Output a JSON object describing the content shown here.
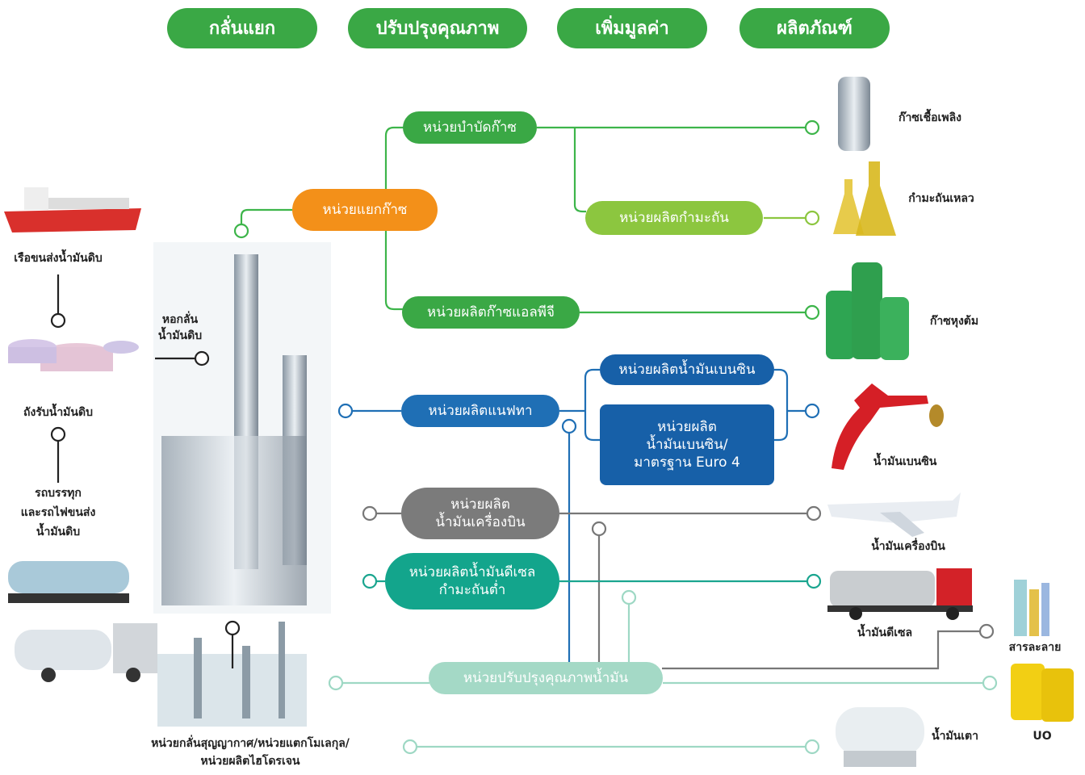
{
  "header": {
    "tabs": [
      "กลั่นแยก",
      "ปรับปรุงคุณภาพ",
      "เพิ่มมูลค่า",
      "ผลิตภัณฑ์"
    ]
  },
  "sources": [
    {
      "lines": [
        "เรือขนส่งน้ำมันดิบ"
      ]
    },
    {
      "lines": [
        "ถังรับน้ำมันดิบ"
      ]
    },
    {
      "lines": [
        "รถบรรทุก",
        "และรถไฟขนส่ง",
        "น้ำมันดิบ"
      ]
    }
  ],
  "tower": {
    "lines": [
      "หอกลั่น",
      "น้ำมันดิบ"
    ]
  },
  "units": [
    {
      "lines": [
        "หน่วยแยกก๊าซ"
      ]
    },
    {
      "lines": [
        "หน่วยบำบัดก๊าซ"
      ]
    },
    {
      "lines": [
        "หน่วยผลิตกำมะถัน"
      ]
    },
    {
      "lines": [
        "หน่วยผลิตก๊าซแอลพีจี"
      ]
    },
    {
      "lines": [
        "หน่วยผลิตแนฟทา"
      ]
    },
    {
      "lines": [
        "หน่วยผลิตน้ำมันเบนซิน"
      ]
    },
    {
      "lines": [
        "หน่วยผลิต",
        "น้ำมันเบนซิน/",
        "มาตรฐาน Euro 4"
      ]
    },
    {
      "lines": [
        "หน่วยผลิต",
        "น้ำมันเครื่องบิน"
      ]
    },
    {
      "lines": [
        "หน่วยผลิตน้ำมันดีเซล",
        "กำมะถันต่ำ"
      ]
    },
    {
      "lines": [
        "หน่วยปรับปรุงคุณภาพน้ำมัน"
      ]
    }
  ],
  "bottom_unit": {
    "lines": [
      "หน่วยกลั่นสุญญากาศ/หน่วยแตกโมเลกุล/",
      "หน่วยผลิตไฮโดรเจน"
    ]
  },
  "products": [
    "ก๊าซเชื้อเพลิง",
    "กำมะถันเหลว",
    "ก๊าซหุงต้ม",
    "น้ำมันเบนซิน",
    "น้ำมันเครื่องบิน",
    "น้ำมันดีเซล",
    "สารละลาย",
    "UO",
    "น้ำมันเตา"
  ]
}
